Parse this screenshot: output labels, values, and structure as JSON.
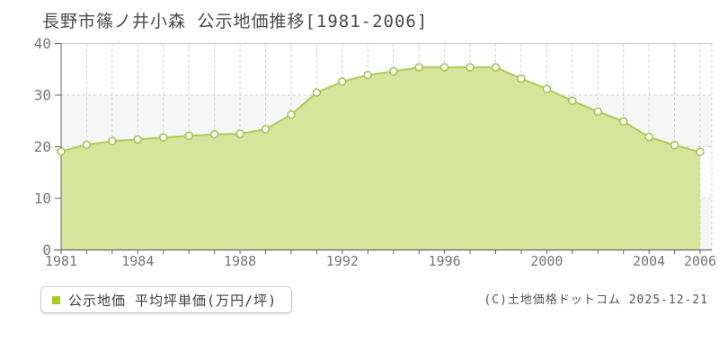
{
  "header": {
    "title": "長野市篠ノ井小森 公示地価推移[1981-2006]"
  },
  "legend": {
    "label": "公示地価 平均坪単価(万円/坪)",
    "swatch_color": "#aacc22",
    "position": "bottom-left"
  },
  "footer": {
    "copyright": "(C)土地価格ドットコム 2025-12-21"
  },
  "chart_data": {
    "type": "area",
    "title": "長野市篠ノ井小森 公示地価推移[1981-2006]",
    "series_name": "公示地価 平均坪単価(万円/坪)",
    "x": [
      1981,
      1982,
      1983,
      1984,
      1985,
      1986,
      1987,
      1988,
      1989,
      1990,
      1991,
      1992,
      1993,
      1994,
      1995,
      1996,
      1997,
      1998,
      1999,
      2000,
      2001,
      2002,
      2003,
      2004,
      2005,
      2006
    ],
    "values": [
      19.1,
      20.4,
      21.1,
      21.4,
      21.8,
      22.1,
      22.4,
      22.5,
      23.4,
      26.2,
      30.5,
      32.6,
      33.9,
      34.6,
      35.4,
      35.4,
      35.4,
      35.4,
      33.2,
      31.2,
      28.9,
      26.8,
      24.9,
      21.9,
      20.3,
      19.0
    ],
    "xlabel": "",
    "ylabel": "",
    "ylim": [
      0,
      40
    ],
    "y_ticks": [
      0,
      10,
      20,
      30,
      40
    ],
    "x_tick_labels": [
      1981,
      1984,
      1988,
      1992,
      1996,
      2000,
      2004,
      2006
    ],
    "grid": "dashed vertical per year, dashed horizontal per 10",
    "bands": [
      [
        0,
        10
      ],
      [
        20,
        30
      ]
    ],
    "legend_position": "bottom-left",
    "colors": {
      "area_fill": "#d7e59c",
      "line": "#aecb57",
      "marker_fill": "#fffef9",
      "marker_stroke": "#a2c24b",
      "band": "#f6f6f6",
      "grid": "#cccccc",
      "axis": "#666666",
      "tick_label": "#777777"
    }
  }
}
